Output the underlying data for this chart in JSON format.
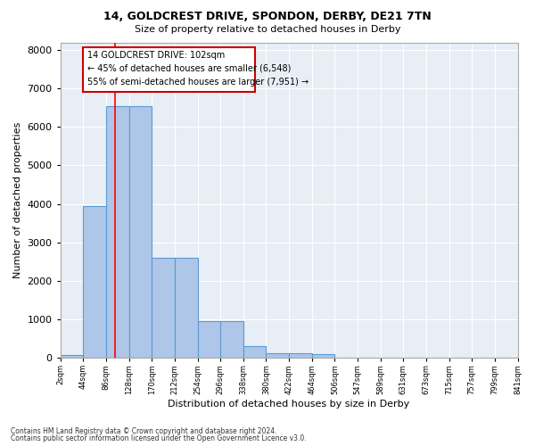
{
  "title1": "14, GOLDCREST DRIVE, SPONDON, DERBY, DE21 7TN",
  "title2": "Size of property relative to detached houses in Derby",
  "xlabel": "Distribution of detached houses by size in Derby",
  "ylabel": "Number of detached properties",
  "footnote1": "Contains HM Land Registry data © Crown copyright and database right 2024.",
  "footnote2": "Contains public sector information licensed under the Open Government Licence v3.0.",
  "annotation_title": "14 GOLDCREST DRIVE: 102sqm",
  "annotation_line2": "← 45% of detached houses are smaller (6,548)",
  "annotation_line3": "55% of semi-detached houses are larger (7,951) →",
  "property_size": 102,
  "bar_values": [
    75,
    3950,
    6550,
    6550,
    2600,
    2600,
    950,
    950,
    300,
    120,
    110,
    85,
    0,
    0,
    0,
    0,
    0,
    0,
    0,
    0
  ],
  "bin_edges": [
    2,
    44,
    86,
    128,
    170,
    212,
    254,
    296,
    338,
    380,
    422,
    464,
    506,
    548,
    590,
    632,
    674,
    716,
    758,
    800,
    842
  ],
  "bin_labels": [
    "2sqm",
    "44sqm",
    "86sqm",
    "128sqm",
    "170sqm",
    "212sqm",
    "254sqm",
    "296sqm",
    "338sqm",
    "380sqm",
    "422sqm",
    "464sqm",
    "506sqm",
    "547sqm",
    "589sqm",
    "631sqm",
    "673sqm",
    "715sqm",
    "757sqm",
    "799sqm",
    "841sqm"
  ],
  "bar_color": "#aec6e8",
  "bar_edge_color": "#5b9bd5",
  "red_line_x": 102,
  "ylim": [
    0,
    8200
  ],
  "yticks": [
    0,
    1000,
    2000,
    3000,
    4000,
    5000,
    6000,
    7000,
    8000
  ],
  "annotation_box_color": "#cc0000",
  "background_color": "#e8eef6"
}
